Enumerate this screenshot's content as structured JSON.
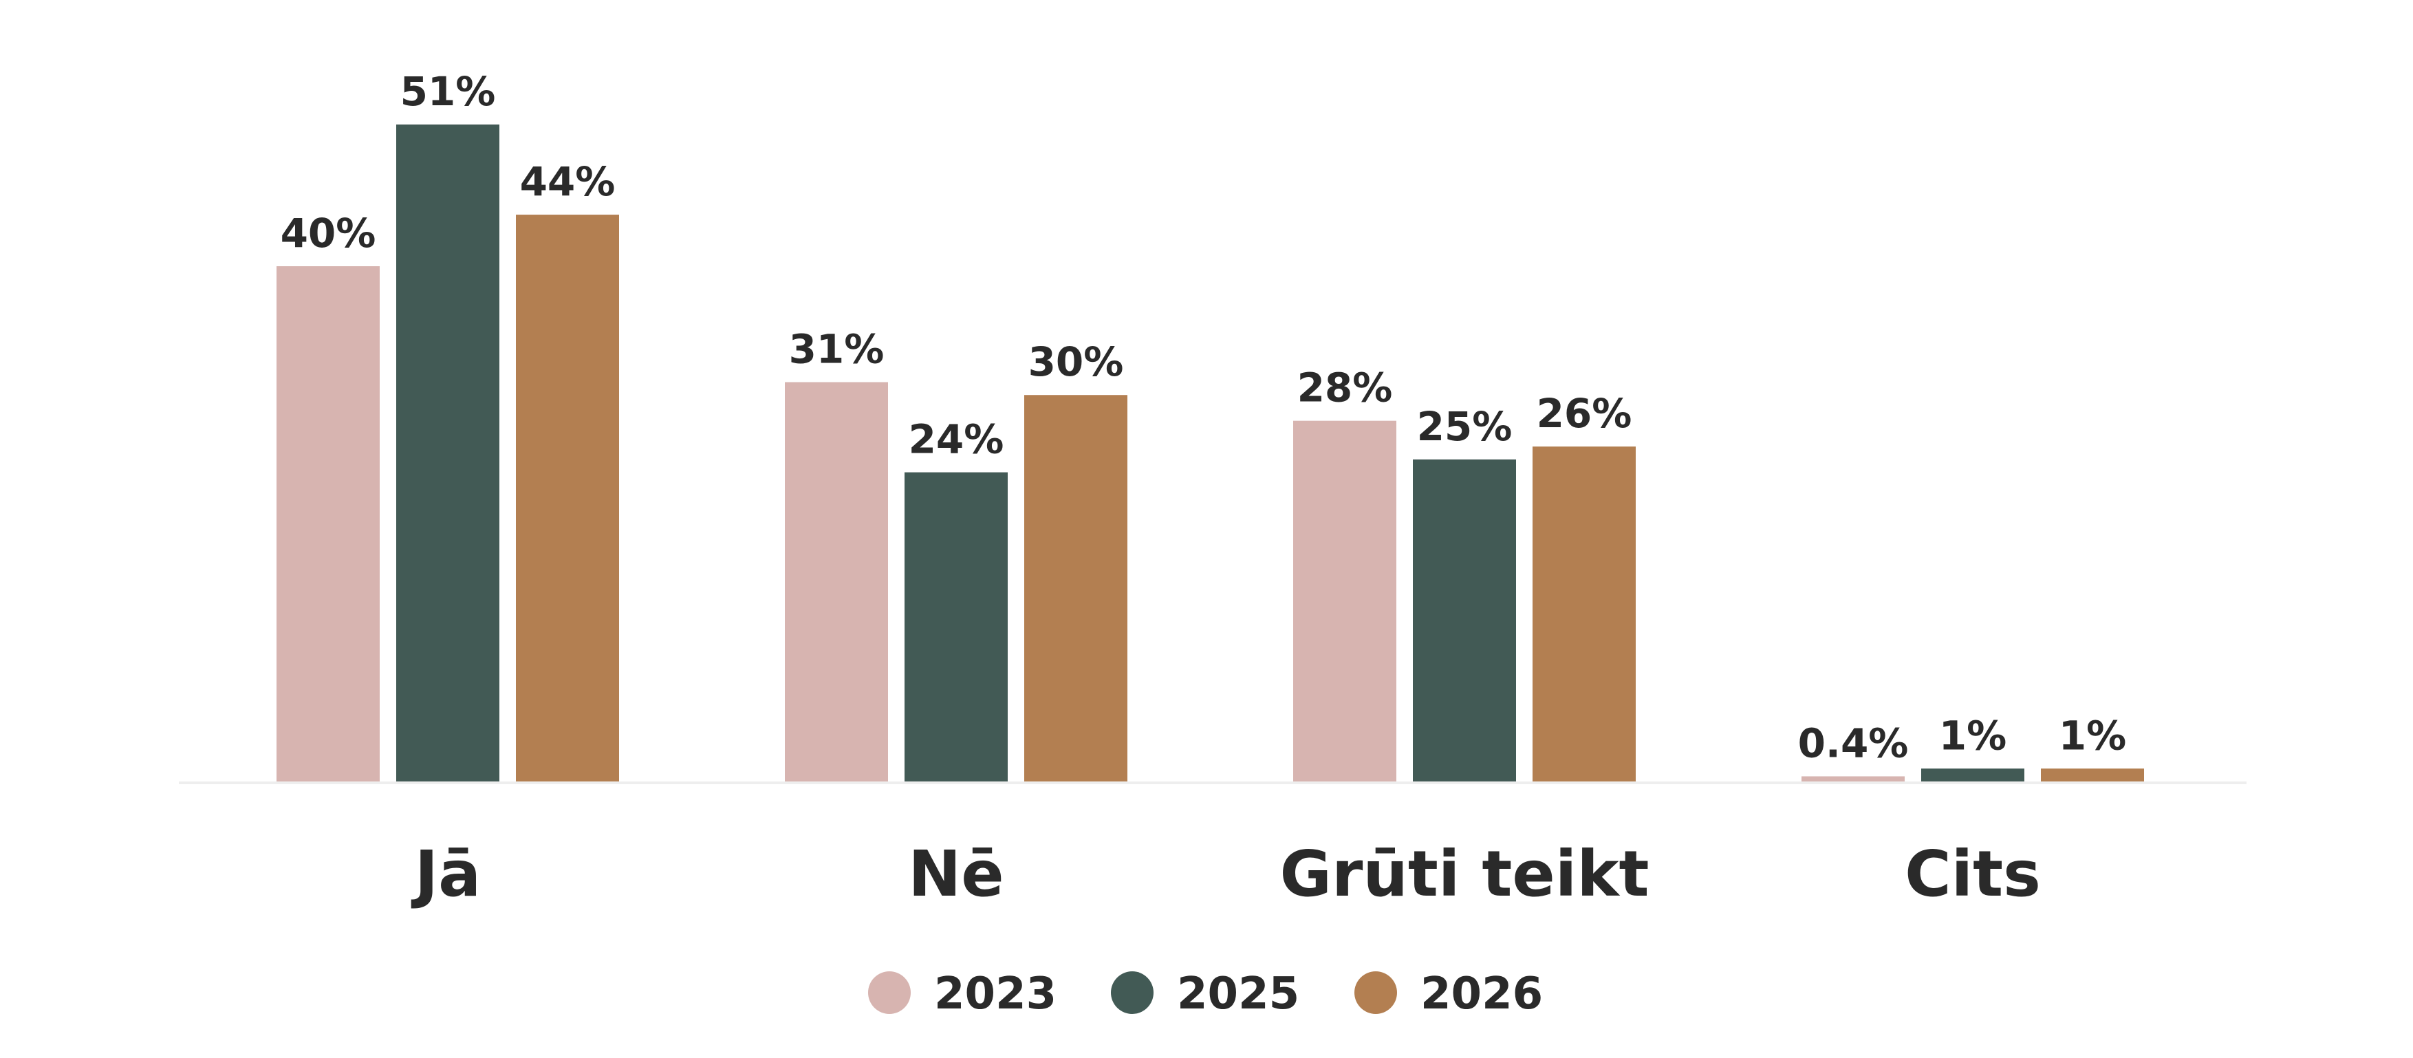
{
  "chart_data": {
    "type": "bar",
    "categories": [
      "Jā",
      "Nē",
      "Grūti teikt",
      "Cits"
    ],
    "series": [
      {
        "name": "2023",
        "color": "#d7b4b0",
        "values": [
          40,
          31,
          28,
          0.4
        ],
        "value_labels": [
          "40%",
          "31%",
          "28%",
          "0.4%"
        ]
      },
      {
        "name": "2025",
        "color": "#425a55",
        "values": [
          51,
          24,
          25,
          1
        ],
        "value_labels": [
          "51%",
          "24%",
          "25%",
          "1%"
        ]
      },
      {
        "name": "2026",
        "color": "#b37f51",
        "values": [
          44,
          30,
          26,
          1
        ],
        "value_labels": [
          "44%",
          "30%",
          "26%",
          "1%"
        ]
      }
    ]
  }
}
